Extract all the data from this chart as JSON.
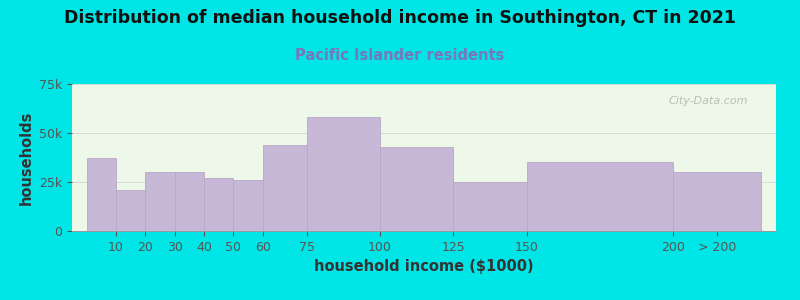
{
  "title": "Distribution of median household income in Southington, CT in 2021",
  "subtitle": "Pacific Islander residents",
  "xlabel": "household income ($1000)",
  "ylabel": "households",
  "bar_color": "#c8b8d8",
  "bar_edgecolor": "#b8a8c8",
  "background_color": "#00e5e5",
  "plot_bg_color": "#edf8e8",
  "watermark": "City-Data.com",
  "title_fontsize": 12.5,
  "subtitle_fontsize": 10.5,
  "axis_label_fontsize": 10.5,
  "tick_fontsize": 9,
  "bar_edges": [
    0,
    10,
    20,
    30,
    40,
    50,
    60,
    75,
    100,
    125,
    150,
    200,
    230
  ],
  "bar_labels": [
    "10",
    "20",
    "30",
    "40",
    "50",
    "60",
    "75",
    "100",
    "125",
    "150",
    "200",
    "> 200"
  ],
  "values": [
    37000,
    21000,
    30000,
    30000,
    27000,
    26000,
    44000,
    58000,
    43000,
    25000,
    35000,
    30000
  ],
  "ylim": [
    0,
    75000
  ],
  "yticks": [
    0,
    25000,
    50000,
    75000
  ],
  "xlim": [
    -5,
    235
  ]
}
